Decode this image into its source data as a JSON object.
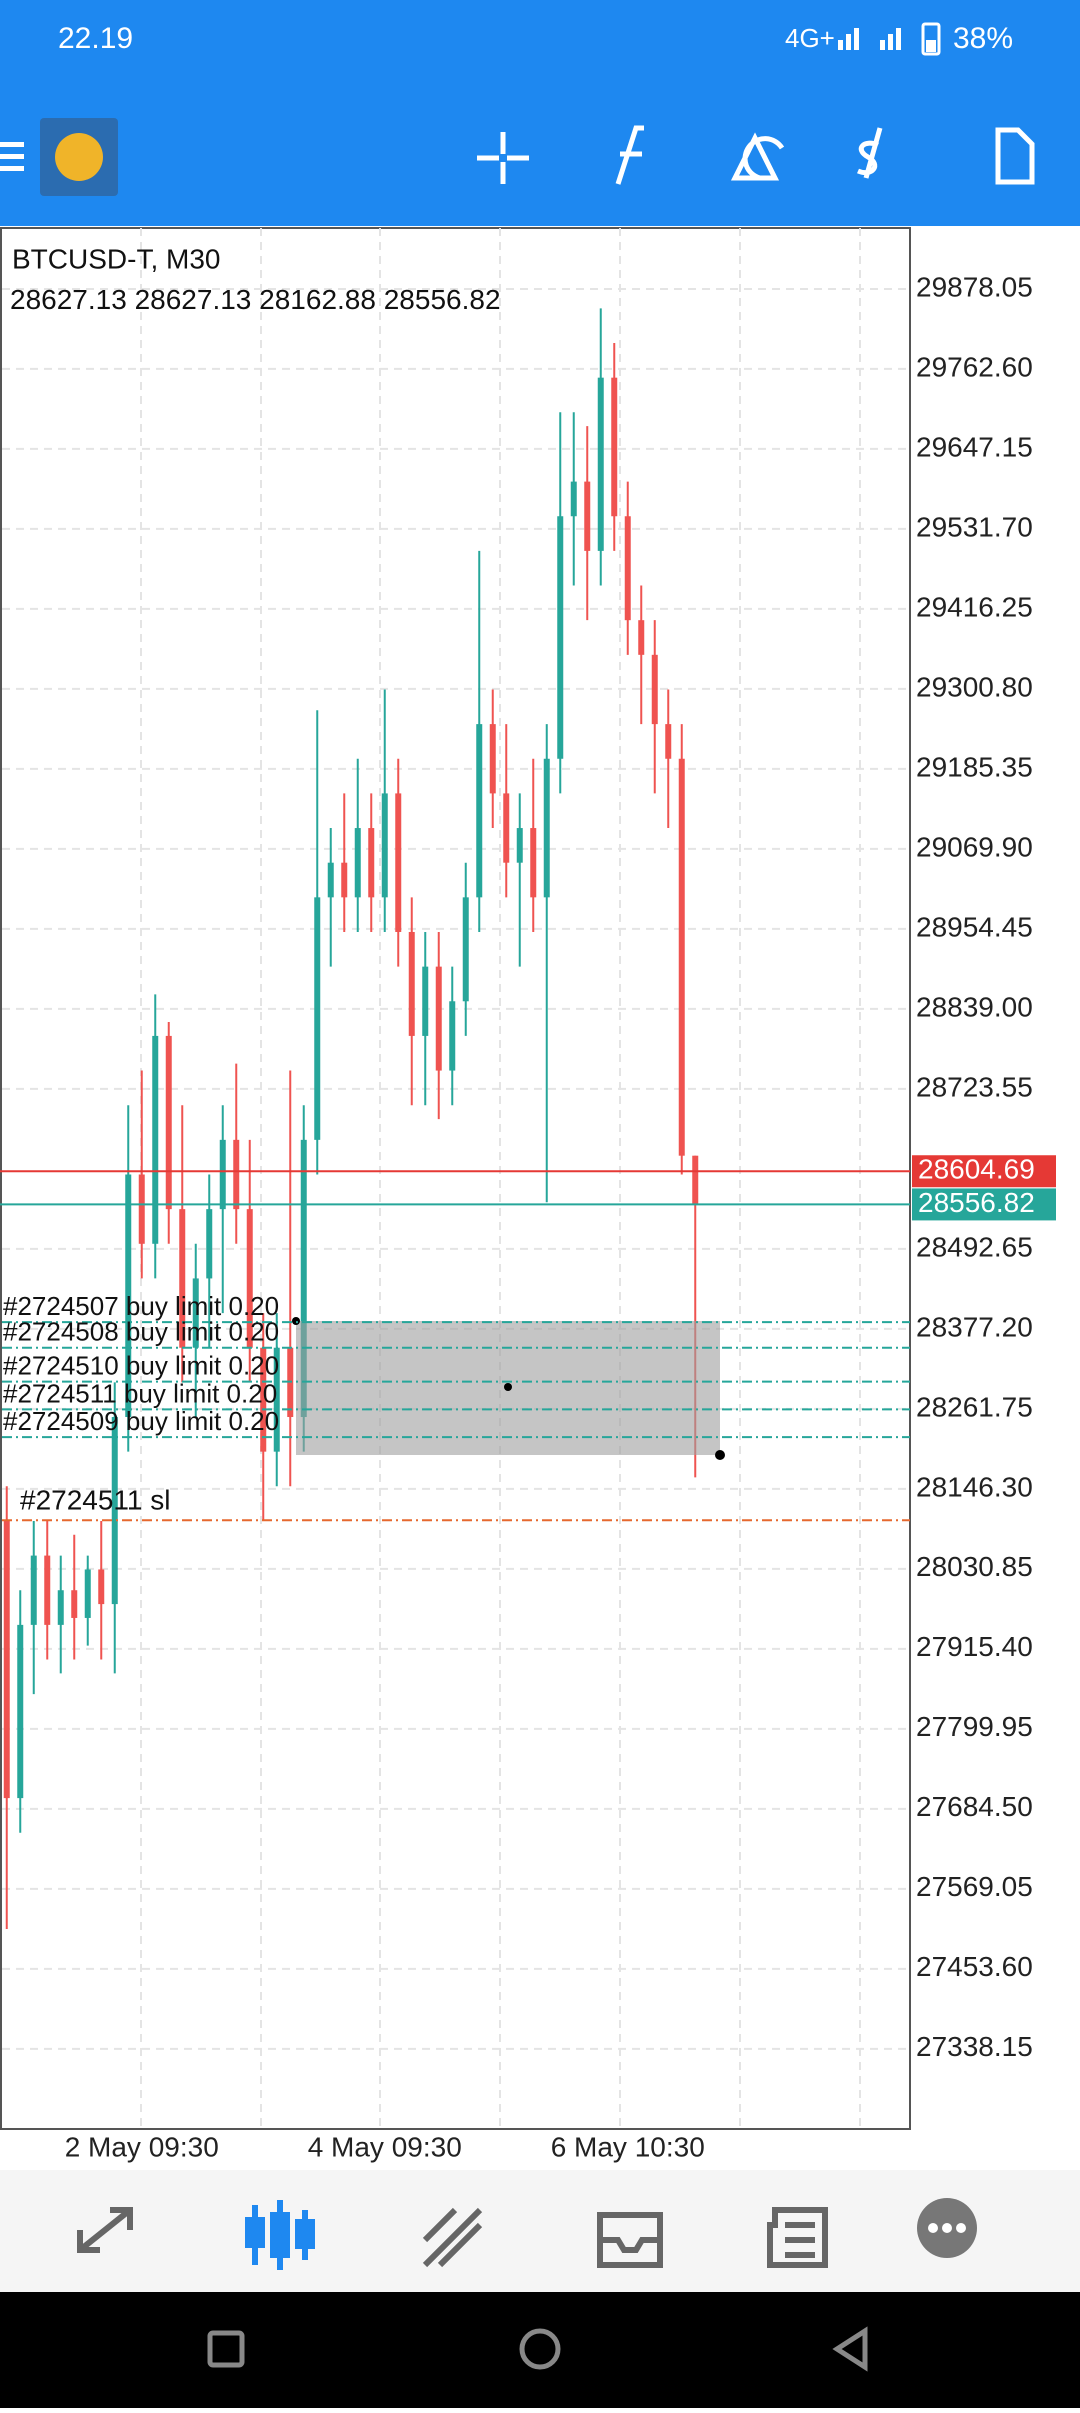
{
  "status_bar": {
    "time": "22.19",
    "network": "4G+",
    "battery": "38%"
  },
  "chart_data": {
    "type": "candlestick",
    "title": "BTCUSD-T, M30",
    "categories": [
      null,
      null,
      null,
      null,
      null,
      null,
      null,
      null,
      null,
      null,
      "2 May 09:30",
      null,
      null,
      null,
      null,
      null,
      null,
      null,
      null,
      null,
      null,
      null,
      null,
      null,
      null,
      null,
      null,
      null,
      "4 May 09:30",
      null,
      null,
      null,
      null,
      null,
      null,
      null,
      null,
      null,
      null,
      null,
      null,
      null,
      null,
      null,
      null,
      null,
      "6 May 10:30",
      null,
      null,
      null,
      null,
      null
    ],
    "open": [
      28100,
      27700,
      27950,
      28050,
      27950,
      28000,
      27960,
      28030,
      27980,
      28250,
      28600,
      28500,
      28800,
      28550,
      28350,
      28450,
      28550,
      28650,
      28550,
      28350,
      28200,
      28350,
      28250,
      28650,
      29000,
      29050,
      29000,
      29100,
      29000,
      29150,
      28950,
      28800,
      28900,
      28750,
      28850,
      29000,
      29250,
      29150,
      29050,
      29100,
      29000,
      29200,
      29550,
      29600,
      29500,
      29750,
      29550,
      29400,
      29350,
      29250,
      29200,
      28627.13
    ],
    "high": [
      28150,
      28000,
      28100,
      28100,
      28050,
      28080,
      28050,
      28100,
      28300,
      28700,
      28750,
      28860,
      28820,
      28700,
      28500,
      28600,
      28700,
      28760,
      28650,
      28400,
      28400,
      28750,
      28700,
      29270,
      29100,
      29150,
      29200,
      29150,
      29300,
      29200,
      29000,
      28950,
      28950,
      28900,
      29050,
      29500,
      29300,
      29250,
      29150,
      29200,
      29250,
      29700,
      29700,
      29680,
      29850,
      29800,
      29600,
      29450,
      29400,
      29300,
      29250,
      28627.13
    ],
    "low": [
      27511,
      27650,
      27850,
      27900,
      27880,
      27900,
      27920,
      27900,
      27880,
      28200,
      28450,
      28450,
      28500,
      28300,
      28250,
      28350,
      28400,
      28500,
      28300,
      28100,
      28150,
      28150,
      28200,
      28600,
      28900,
      28950,
      28950,
      28950,
      28950,
      28900,
      28700,
      28700,
      28680,
      28700,
      28800,
      28950,
      29100,
      29000,
      28900,
      28950,
      28560,
      29150,
      29450,
      29400,
      29450,
      29500,
      29350,
      29250,
      29150,
      29100,
      28600,
      28162.88
    ],
    "close": [
      27700,
      27950,
      28050,
      27950,
      28000,
      27960,
      28030,
      27980,
      28250,
      28600,
      28500,
      28800,
      28550,
      28350,
      28450,
      28550,
      28650,
      28550,
      28350,
      28200,
      28350,
      28250,
      28650,
      29000,
      29050,
      29000,
      29100,
      29000,
      29150,
      28950,
      28800,
      28900,
      28750,
      28850,
      29000,
      29250,
      29150,
      29050,
      29100,
      29000,
      29200,
      29550,
      29600,
      29500,
      29750,
      29550,
      29400,
      29350,
      29250,
      29200,
      28627.13,
      28556.82
    ],
    "up_color": "#26a69a",
    "down_color": "#ef5350",
    "ylim": [
      27221,
      29966
    ],
    "yticks": [
      29878.05,
      {
        "value": 29762.6,
        "label": "29762.60"
      },
      29647.15,
      {
        "value": 29531.7,
        "label": "29531.70"
      },
      29416.25,
      {
        "value": 29300.8,
        "label": "29300.80"
      },
      29185.35,
      {
        "value": 29069.9,
        "label": "29069.90"
      },
      28954.45,
      {
        "value": 28839,
        "label": "28839.00"
      },
      28723.55,
      28492.65,
      {
        "value": 28377.2,
        "label": "28377.20"
      },
      28261.75,
      {
        "value": 28146.3,
        "label": "28146.30"
      },
      28030.85,
      {
        "value": 27915.4,
        "label": "27915.40"
      },
      27799.95,
      {
        "value": 27684.5,
        "label": "27684.50"
      },
      27569.05,
      {
        "value": 27453.6,
        "label": "27453.60"
      },
      27338.15
    ],
    "grid": true,
    "price_lines": [
      {
        "value": 28604.69,
        "color": "#e53935"
      },
      {
        "value": 28556.82,
        "color": "#26a69a"
      }
    ],
    "orders": [
      {
        "label": "#2724507 buy limit 0.20",
        "price": 28387
      },
      {
        "label": "#2724508 buy limit 0.20",
        "price": 28350
      },
      {
        "label": "#2724510 buy limit 0.20",
        "price": 28301
      },
      {
        "label": "#2724511 buy limit 0.20",
        "price": 28261
      },
      {
        "label": "#2724509 buy limit 0.20",
        "price": 28221
      }
    ],
    "order_color": "#26a69a",
    "stop_loss": {
      "label": "#2724511 sl",
      "price": 28101,
      "color": "#e6682e"
    }
  }
}
